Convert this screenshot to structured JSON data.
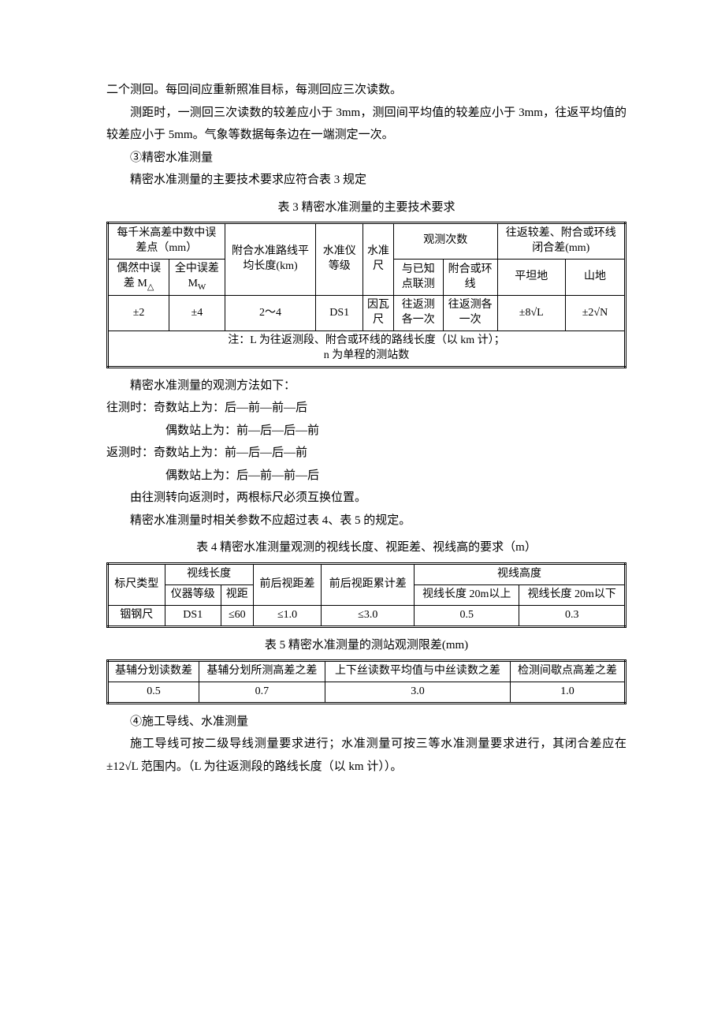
{
  "intro": {
    "p1": "二个测回。每回间应重新照准目标，每测回应三次读数。",
    "p2": "测距时，一测回三次读数的较差应小于 3mm，测回间平均值的较差应小于 3mm，往返平均值的较差应小于 5mm。气象等数据每条边在一端测定一次。",
    "p3": "③精密水准测量",
    "p4": "精密水准测量的主要技术要求应符合表 3 规定"
  },
  "table3": {
    "caption": "表 3 精密水准测量的主要技术要求",
    "h_error_per_km": "每千米高差中数中误差点（mm）",
    "h_attach_route": "附合水准路线平均长度(km)",
    "h_level_grade": "水准仪等级",
    "h_staff": "水准尺",
    "h_obs_count": "观测次数",
    "h_closure": "往返较差、附合或环线闭合差(mm)",
    "h_random_err": "偶然中误差 M",
    "h_random_err_sub": "△",
    "h_total_err": "全中误差 M",
    "h_total_err_sub": "W",
    "h_known_point": "与已知点联测",
    "h_ring": "附合或环　线",
    "h_flat": "平坦地",
    "h_mountain": "山地",
    "r": {
      "c1": "±2",
      "c2": "±4",
      "c3": "2～4",
      "c4": "DS1",
      "c5": "因瓦尺",
      "c6": "往返测各一次",
      "c7": "往返测各一次",
      "c8": "±8√L",
      "c9": "±2√N"
    },
    "note1": "注：L 为往返测段、附合或环线的路线长度（以 km 计）；",
    "note2": "n 为单程的测站数"
  },
  "mid": {
    "p1": "精密水准测量的观测方法如下：",
    "p2": "往测时：奇数站上为：后—前—前—后",
    "p3": "偶数站上为：前—后—后—前",
    "p4": "返测时：奇数站上为：前—后—后—前",
    "p5": "偶数站上为：后—前—前—后",
    "p6": "由往测转向返测时，两根标尺必须互换位置。",
    "p7": "精密水准测量时相关参数不应超过表 4、表 5 的规定。"
  },
  "table4": {
    "caption": "表 4 精密水准测量观测的视线长度、视距差、视线高的要求（m）",
    "h_staff_type": "标尺类型",
    "h_sight_len": "视线长度",
    "h_fb_dist": "前后视距差",
    "h_fb_dist_acc": "前后视距累计差",
    "h_sight_height": "视线高度",
    "h_instr_grade": "仪器等级",
    "h_dist": "视距",
    "h_len20up": "视线长度 20m以上",
    "h_len20dn": "视线长度 20m以下",
    "r": {
      "c1": "铟钢尺",
      "c2": "DS1",
      "c3": "≤60",
      "c4": "≤1.0",
      "c5": "≤3.0",
      "c6": "0.5",
      "c7": "0.3"
    }
  },
  "table5": {
    "caption": "表 5 精密水准测量的测站观测限差(mm)",
    "h1": "基辅分划读数差",
    "h2": "基辅分划所测高差之差",
    "h3": "上下丝读数平均值与中丝读数之差",
    "h4": "检测间歇点高差之差",
    "r": {
      "c1": "0.5",
      "c2": "0.7",
      "c3": "3.0",
      "c4": "1.0"
    }
  },
  "outro": {
    "p1": "④施工导线、水准测量",
    "p2": "施工导线可按二级导线测量要求进行；水准测量可按三等水准测量要求进行，其闭合差应在±12√L 范围内。（L 为往返测段的路线长度（以 km 计））。"
  }
}
